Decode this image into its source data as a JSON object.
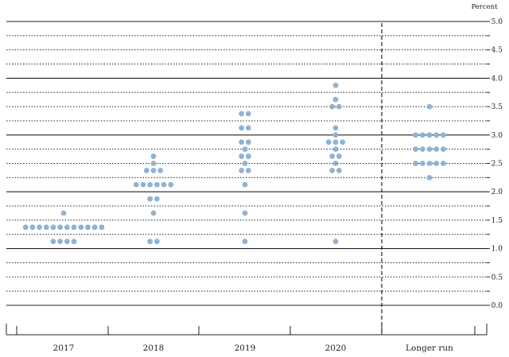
{
  "chart_data": {
    "type": "scatter",
    "unit_label": "Percent",
    "categories": [
      "2017",
      "2018",
      "2019",
      "2020",
      "Longer run"
    ],
    "ylim": [
      0,
      5
    ],
    "yticks": [
      "0.0",
      "0.5",
      "1.0",
      "1.5",
      "2.0",
      "2.5",
      "3.0",
      "3.5",
      "4.0",
      "4.5",
      "5.0"
    ],
    "gridlines": "solid at whole percents, dotted at quarter percents",
    "separator_before": "Longer run",
    "dot_color": "#8fb3d3",
    "points": [
      {
        "category": "2017",
        "y": 1.625,
        "count": 1
      },
      {
        "category": "2017",
        "y": 1.375,
        "count": 12
      },
      {
        "category": "2017",
        "y": 1.125,
        "count": 4
      },
      {
        "category": "2018",
        "y": 2.625,
        "count": 1
      },
      {
        "category": "2018",
        "y": 2.5,
        "count": 1
      },
      {
        "category": "2018",
        "y": 2.375,
        "count": 3
      },
      {
        "category": "2018",
        "y": 2.125,
        "count": 6
      },
      {
        "category": "2018",
        "y": 1.875,
        "count": 2
      },
      {
        "category": "2018",
        "y": 1.625,
        "count": 1
      },
      {
        "category": "2018",
        "y": 1.125,
        "count": 2
      },
      {
        "category": "2019",
        "y": 3.375,
        "count": 2
      },
      {
        "category": "2019",
        "y": 3.125,
        "count": 2
      },
      {
        "category": "2019",
        "y": 2.875,
        "count": 2
      },
      {
        "category": "2019",
        "y": 2.75,
        "count": 1
      },
      {
        "category": "2019",
        "y": 2.625,
        "count": 2
      },
      {
        "category": "2019",
        "y": 2.5,
        "count": 1
      },
      {
        "category": "2019",
        "y": 2.375,
        "count": 2
      },
      {
        "category": "2019",
        "y": 2.125,
        "count": 1
      },
      {
        "category": "2019",
        "y": 1.625,
        "count": 1
      },
      {
        "category": "2019",
        "y": 1.125,
        "count": 1
      },
      {
        "category": "2020",
        "y": 3.875,
        "count": 1
      },
      {
        "category": "2020",
        "y": 3.625,
        "count": 1
      },
      {
        "category": "2020",
        "y": 3.5,
        "count": 2
      },
      {
        "category": "2020",
        "y": 3.125,
        "count": 1
      },
      {
        "category": "2020",
        "y": 3.0,
        "count": 1
      },
      {
        "category": "2020",
        "y": 2.875,
        "count": 3
      },
      {
        "category": "2020",
        "y": 2.75,
        "count": 1
      },
      {
        "category": "2020",
        "y": 2.625,
        "count": 2
      },
      {
        "category": "2020",
        "y": 2.5,
        "count": 1
      },
      {
        "category": "2020",
        "y": 2.375,
        "count": 2
      },
      {
        "category": "2020",
        "y": 1.125,
        "count": 1
      },
      {
        "category": "Longer run",
        "y": 3.5,
        "count": 1
      },
      {
        "category": "Longer run",
        "y": 3.0,
        "count": 5
      },
      {
        "category": "Longer run",
        "y": 2.75,
        "count": 5
      },
      {
        "category": "Longer run",
        "y": 2.5,
        "count": 5
      },
      {
        "category": "Longer run",
        "y": 2.25,
        "count": 1
      }
    ]
  }
}
